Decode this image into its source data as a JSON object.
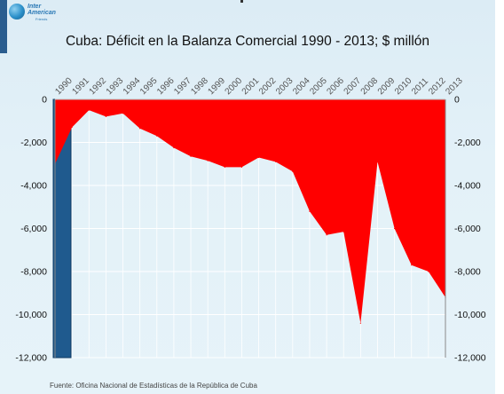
{
  "logo": {
    "text": "Inter\nAmerican",
    "subtext": "Friends"
  },
  "source": "Fuente: Oficina Nacional de Estadísticas de la República de Cuba",
  "colors": {
    "area_fill": "#ff0000",
    "highlight_bar": "#1f5a8e",
    "axis": "#8a8a8a",
    "grid": "#ffffff"
  },
  "chart_data": {
    "type": "area",
    "title": "Cuba: Déficit en la Balanza Comercial 1990 - 2013; $ millón",
    "xlabel": "",
    "ylabel": "",
    "categories": [
      "1990",
      "1991",
      "1992",
      "1993",
      "1994",
      "1995",
      "1996",
      "1997",
      "1998",
      "1999",
      "2000",
      "2001",
      "2002",
      "2003",
      "2004",
      "2005",
      "2006",
      "2007",
      "2008",
      "2009",
      "2010",
      "2011",
      "2012",
      "2013"
    ],
    "series": [
      {
        "values": [
          -3000,
          -1300,
          -500,
          -800,
          -650,
          -1350,
          -1700,
          -2250,
          -2650,
          -2850,
          -3150,
          -3150,
          -2700,
          -2900,
          -3350,
          -5200,
          -6300,
          -6150,
          -10400,
          -2900,
          -6000,
          -7700,
          -8000,
          -9200
        ]
      }
    ],
    "highlight_bar": {
      "category": "1990",
      "value": -12000
    },
    "ylim": [
      -12000,
      0
    ],
    "yticks_left": [
      0,
      -2000,
      -4000,
      -6000,
      -8000,
      -10000,
      -12000
    ],
    "ytick_labels_left": [
      "0",
      "-2,000",
      "-4,000",
      "-6,000",
      "-8,000",
      "-10,000",
      "-12,000"
    ],
    "ytick_labels_right": [
      "0",
      "-2,000",
      "-4,000",
      "-6,000",
      "-8,000",
      "-10,000",
      "-12,000"
    ],
    "grid": true,
    "legend": "none"
  }
}
